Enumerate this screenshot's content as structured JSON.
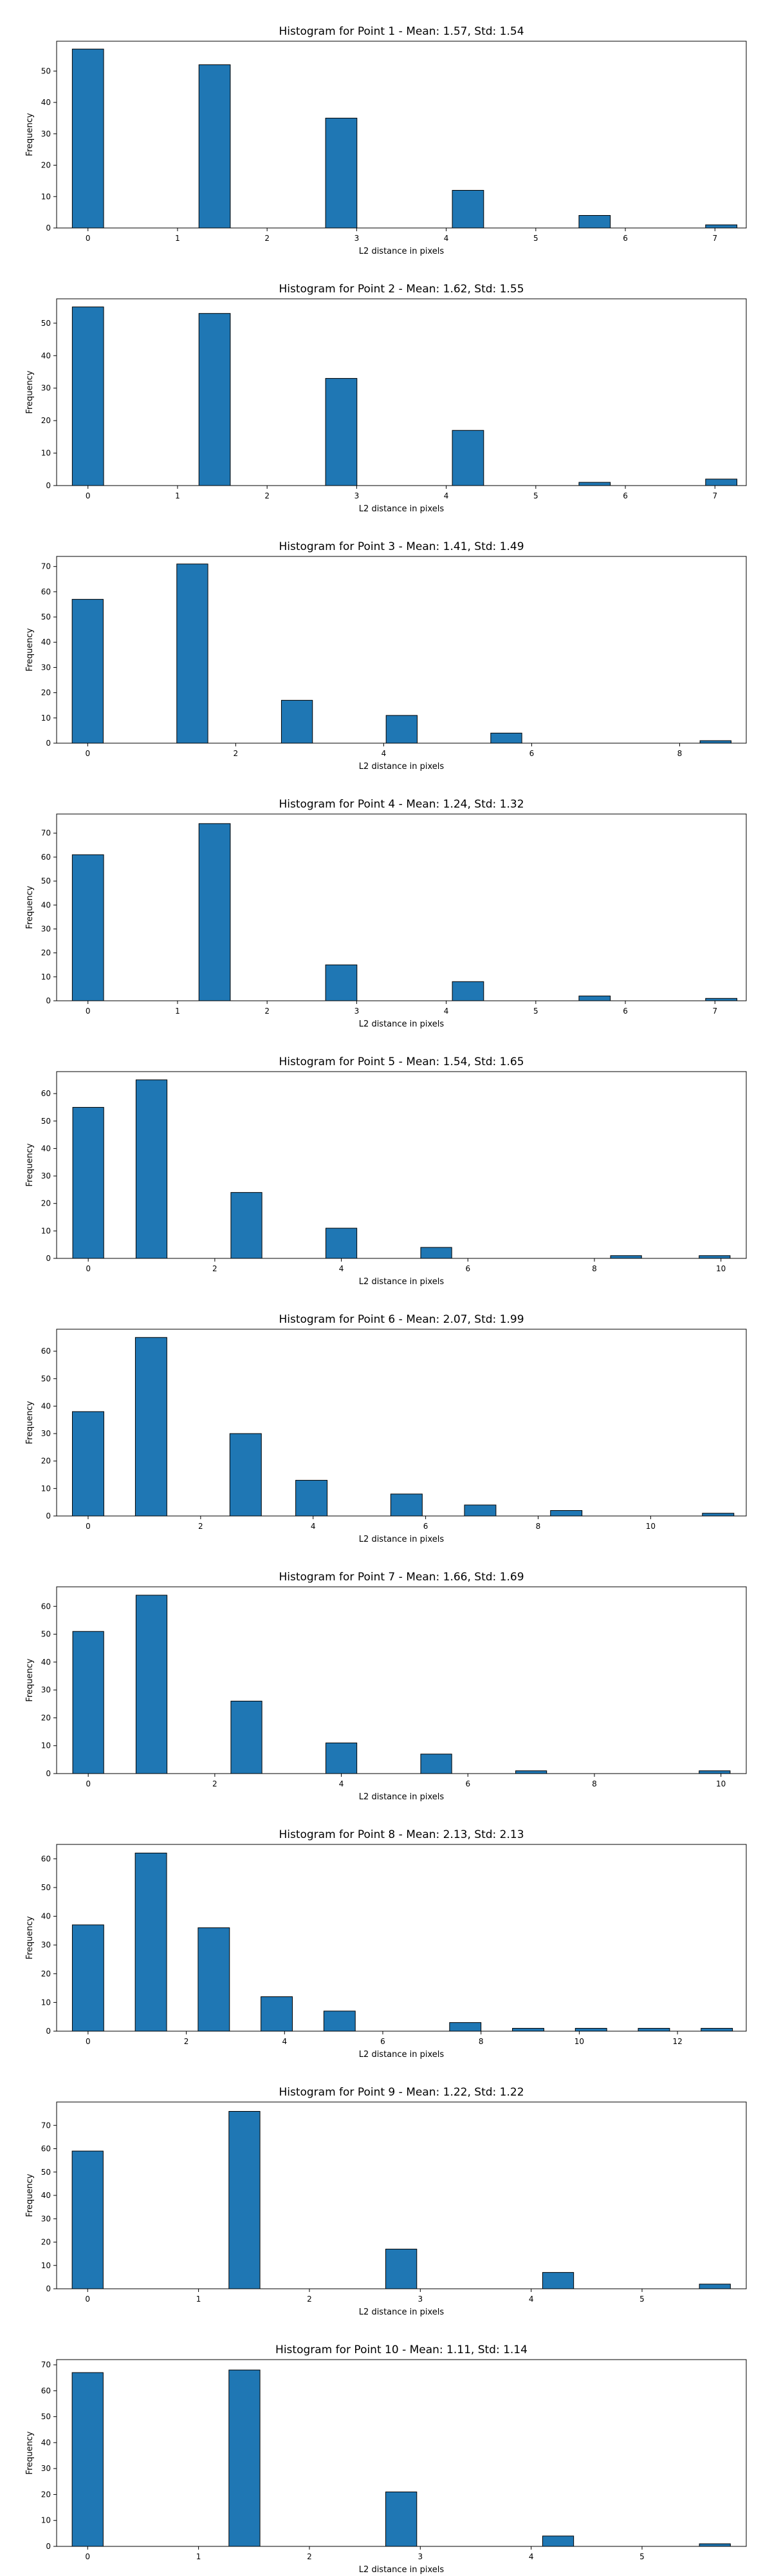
{
  "chart_data": [
    {
      "type": "bar",
      "title": "Histogram for Point 1 - Mean: 1.57, Std: 1.54",
      "xlabel": "L2 distance in pixels",
      "ylabel": "Frequency",
      "xlim": [
        -0.35,
        7.35
      ],
      "ylim": [
        0,
        59.5
      ],
      "xticks": [
        0,
        1,
        2,
        3,
        4,
        5,
        6,
        7
      ],
      "yticks": [
        0,
        10,
        20,
        30,
        40,
        50
      ],
      "bar_width": 0.35,
      "bars": [
        {
          "x": 0.0,
          "value": 57
        },
        {
          "x": 1.414,
          "value": 52
        },
        {
          "x": 2.828,
          "value": 35
        },
        {
          "x": 4.243,
          "value": 12
        },
        {
          "x": 5.657,
          "value": 4
        },
        {
          "x": 7.071,
          "value": 1
        }
      ]
    },
    {
      "type": "bar",
      "title": "Histogram for Point 2 - Mean: 1.62, Std: 1.55",
      "xlabel": "L2 distance in pixels",
      "ylabel": "Frequency",
      "xlim": [
        -0.35,
        7.35
      ],
      "ylim": [
        0,
        57.5
      ],
      "xticks": [
        0,
        1,
        2,
        3,
        4,
        5,
        6,
        7
      ],
      "yticks": [
        0,
        10,
        20,
        30,
        40,
        50
      ],
      "bar_width": 0.35,
      "bars": [
        {
          "x": 0.0,
          "value": 55
        },
        {
          "x": 1.414,
          "value": 53
        },
        {
          "x": 2.828,
          "value": 33
        },
        {
          "x": 4.243,
          "value": 17
        },
        {
          "x": 5.657,
          "value": 1
        },
        {
          "x": 7.071,
          "value": 2
        }
      ]
    },
    {
      "type": "bar",
      "title": "Histogram for Point 3 - Mean: 1.41, Std: 1.49",
      "xlabel": "L2 distance in pixels",
      "ylabel": "Frequency",
      "xlim": [
        -0.42,
        8.9
      ],
      "ylim": [
        0,
        74
      ],
      "xticks": [
        0,
        2,
        4,
        6,
        8
      ],
      "yticks": [
        0,
        10,
        20,
        30,
        40,
        50,
        60,
        70
      ],
      "bar_width": 0.42,
      "bars": [
        {
          "x": 0.0,
          "value": 57
        },
        {
          "x": 1.414,
          "value": 71
        },
        {
          "x": 2.828,
          "value": 17
        },
        {
          "x": 4.243,
          "value": 11
        },
        {
          "x": 5.657,
          "value": 4
        },
        {
          "x": 8.485,
          "value": 1
        }
      ]
    },
    {
      "type": "bar",
      "title": "Histogram for Point 4 - Mean: 1.24, Std: 1.32",
      "xlabel": "L2 distance in pixels",
      "ylabel": "Frequency",
      "xlim": [
        -0.35,
        7.35
      ],
      "ylim": [
        0,
        78
      ],
      "xticks": [
        0,
        1,
        2,
        3,
        4,
        5,
        6,
        7
      ],
      "yticks": [
        0,
        10,
        20,
        30,
        40,
        50,
        60,
        70
      ],
      "bar_width": 0.35,
      "bars": [
        {
          "x": 0.0,
          "value": 61
        },
        {
          "x": 1.414,
          "value": 74
        },
        {
          "x": 2.828,
          "value": 15
        },
        {
          "x": 4.243,
          "value": 8
        },
        {
          "x": 5.657,
          "value": 2
        },
        {
          "x": 7.071,
          "value": 1
        }
      ]
    },
    {
      "type": "bar",
      "title": "Histogram for Point 5 - Mean: 1.54, Std: 1.65",
      "xlabel": "L2 distance in pixels",
      "ylabel": "Frequency",
      "xlim": [
        -0.5,
        10.4
      ],
      "ylim": [
        0,
        68
      ],
      "xticks": [
        0,
        2,
        4,
        6,
        8,
        10
      ],
      "yticks": [
        0,
        10,
        20,
        30,
        40,
        50,
        60
      ],
      "bar_width": 0.49,
      "bars": [
        {
          "x": 0.0,
          "value": 55
        },
        {
          "x": 1.0,
          "value": 65
        },
        {
          "x": 2.5,
          "value": 24
        },
        {
          "x": 4.0,
          "value": 11
        },
        {
          "x": 5.5,
          "value": 4
        },
        {
          "x": 8.5,
          "value": 1
        },
        {
          "x": 9.9,
          "value": 1
        }
      ]
    },
    {
      "type": "bar",
      "title": "Histogram for Point 6 - Mean: 2.07, Std: 1.99",
      "xlabel": "L2 distance in pixels",
      "ylabel": "Frequency",
      "xlim": [
        -0.56,
        11.7
      ],
      "ylim": [
        0,
        68
      ],
      "xticks": [
        0,
        2,
        4,
        6,
        8,
        10
      ],
      "yticks": [
        0,
        10,
        20,
        30,
        40,
        50,
        60
      ],
      "bar_width": 0.56,
      "bars": [
        {
          "x": 0.0,
          "value": 38
        },
        {
          "x": 1.12,
          "value": 65
        },
        {
          "x": 2.8,
          "value": 30
        },
        {
          "x": 3.97,
          "value": 13
        },
        {
          "x": 5.66,
          "value": 8
        },
        {
          "x": 6.97,
          "value": 4
        },
        {
          "x": 8.5,
          "value": 2
        },
        {
          "x": 11.2,
          "value": 1
        }
      ]
    },
    {
      "type": "bar",
      "title": "Histogram for Point 7 - Mean: 1.66, Std: 1.69",
      "xlabel": "L2 distance in pixels",
      "ylabel": "Frequency",
      "xlim": [
        -0.5,
        10.4
      ],
      "ylim": [
        0,
        67
      ],
      "xticks": [
        0,
        2,
        4,
        6,
        8,
        10
      ],
      "yticks": [
        0,
        10,
        20,
        30,
        40,
        50,
        60
      ],
      "bar_width": 0.49,
      "bars": [
        {
          "x": 0.0,
          "value": 51
        },
        {
          "x": 1.0,
          "value": 64
        },
        {
          "x": 2.5,
          "value": 26
        },
        {
          "x": 4.0,
          "value": 11
        },
        {
          "x": 5.5,
          "value": 7
        },
        {
          "x": 7.0,
          "value": 1
        },
        {
          "x": 9.9,
          "value": 1
        }
      ]
    },
    {
      "type": "bar",
      "title": "Histogram for Point 8 - Mean: 2.13, Std: 2.13",
      "xlabel": "L2 distance in pixels",
      "ylabel": "Frequency",
      "xlim": [
        -0.64,
        13.4
      ],
      "ylim": [
        0,
        65
      ],
      "xticks": [
        0,
        2,
        4,
        6,
        8,
        10,
        12
      ],
      "yticks": [
        0,
        10,
        20,
        30,
        40,
        50,
        60
      ],
      "bar_width": 0.64,
      "bars": [
        {
          "x": 0.0,
          "value": 37
        },
        {
          "x": 1.28,
          "value": 62
        },
        {
          "x": 2.56,
          "value": 36
        },
        {
          "x": 3.84,
          "value": 12
        },
        {
          "x": 5.12,
          "value": 7
        },
        {
          "x": 6.4,
          "value": 0
        },
        {
          "x": 7.68,
          "value": 3
        },
        {
          "x": 8.96,
          "value": 1
        },
        {
          "x": 10.24,
          "value": 1
        },
        {
          "x": 11.52,
          "value": 1
        },
        {
          "x": 12.8,
          "value": 1
        }
      ]
    },
    {
      "type": "bar",
      "title": "Histogram for Point 9 - Mean: 1.22, Std: 1.22",
      "xlabel": "L2 distance in pixels",
      "ylabel": "Frequency",
      "xlim": [
        -0.28,
        5.94
      ],
      "ylim": [
        0,
        80
      ],
      "xticks": [
        0,
        1,
        2,
        3,
        4,
        5
      ],
      "yticks": [
        0,
        10,
        20,
        30,
        40,
        50,
        60,
        70
      ],
      "bar_width": 0.28,
      "bars": [
        {
          "x": 0.0,
          "value": 59
        },
        {
          "x": 1.414,
          "value": 76
        },
        {
          "x": 2.828,
          "value": 17
        },
        {
          "x": 4.243,
          "value": 7
        },
        {
          "x": 5.657,
          "value": 2
        }
      ]
    },
    {
      "type": "bar",
      "title": "Histogram for Point 10 - Mean: 1.11, Std: 1.14",
      "xlabel": "L2 distance in pixels",
      "ylabel": "Frequency",
      "xlim": [
        -0.28,
        5.94
      ],
      "ylim": [
        0,
        72
      ],
      "xticks": [
        0,
        1,
        2,
        3,
        4,
        5
      ],
      "yticks": [
        0,
        10,
        20,
        30,
        40,
        50,
        60,
        70
      ],
      "bar_width": 0.28,
      "bars": [
        {
          "x": 0.0,
          "value": 67
        },
        {
          "x": 1.414,
          "value": 68
        },
        {
          "x": 2.828,
          "value": 21
        },
        {
          "x": 4.243,
          "value": 4
        },
        {
          "x": 5.657,
          "value": 1
        }
      ]
    }
  ]
}
